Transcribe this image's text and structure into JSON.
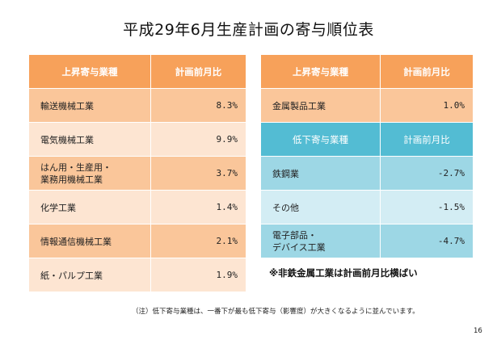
{
  "title": "平成29年6月生産計画の寄与順位表",
  "left_table": {
    "header": {
      "name": "上昇寄与業種",
      "value": "計画前月比"
    },
    "rows": [
      {
        "name": "輸送機械工業",
        "value": "8.3%"
      },
      {
        "name": "電気機械工業",
        "value": "9.9%"
      },
      {
        "name_line1": "はん用・生産用・",
        "name_line2": "業務用機械工業",
        "value": "3.7%"
      },
      {
        "name": "化学工業",
        "value": "1.4%"
      },
      {
        "name": "情報通信機械工業",
        "value": "2.1%"
      },
      {
        "name": "紙・パルプ工業",
        "value": "1.9%"
      }
    ]
  },
  "right_table": {
    "up_header": {
      "name": "上昇寄与業種",
      "value": "計画前月比"
    },
    "up_rows": [
      {
        "name": "金属製品工業",
        "value": "1.0%"
      }
    ],
    "down_header": {
      "name": "低下寄与業種",
      "value": "計画前月比"
    },
    "down_rows": [
      {
        "name": "鉄鋼業",
        "value": "-2.7%"
      },
      {
        "name": "その他",
        "value": "-1.5%"
      },
      {
        "name_line1": "電子部品・",
        "name_line2": "デバイス工業",
        "value": "-4.7%"
      }
    ]
  },
  "note_right": "※非鉄金属工業は計画前月比横ばい",
  "footnote": "（注）低下寄与業種は、一番下が最も低下寄与（影響度）が大きくなるように並んでいます。",
  "page_number": "16",
  "colors": {
    "orange_header": "#f7a15a",
    "orange_dark": "#fac69a",
    "orange_light": "#fde5d2",
    "blue_header": "#53bcd3",
    "blue_dark": "#9dd7e5",
    "blue_light": "#d3edf4"
  }
}
